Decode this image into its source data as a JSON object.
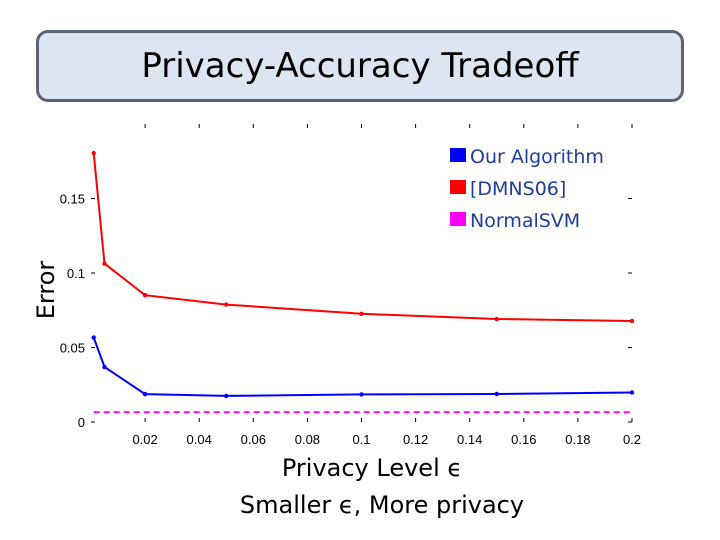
{
  "slide": {
    "title": "Privacy-Accuracy Tradeoff"
  },
  "chart_data": {
    "type": "line",
    "title": "",
    "xlabel": "Privacy Level ϵ",
    "xlabel_sub": "Smaller ϵ, More privacy",
    "ylabel": "Error",
    "xlim": [
      0,
      0.2
    ],
    "ylim": [
      0,
      0.2
    ],
    "x_ticks": [
      0.02,
      0.04,
      0.06,
      0.08,
      0.1,
      0.12,
      0.14,
      0.16,
      0.18,
      0.2
    ],
    "x_tick_labels": [
      "0.02",
      "0.04",
      "0.06",
      "0.08",
      "0.1",
      "0.12",
      "0.14",
      "0.16",
      "0.18",
      "0.2"
    ],
    "y_ticks": [
      0,
      0.05,
      0.1,
      0.15
    ],
    "y_tick_labels": [
      "0",
      "0.05",
      "0.1",
      "0.15"
    ],
    "grid": false,
    "legend_position": "top-right",
    "series": [
      {
        "name": "Our Algorithm",
        "color": "#0000ff",
        "style": "solid",
        "x": [
          0.001,
          0.005,
          0.02,
          0.05,
          0.1,
          0.15,
          0.2
        ],
        "y": [
          0.0567,
          0.0369,
          0.0187,
          0.0175,
          0.0185,
          0.0188,
          0.0198
        ]
      },
      {
        "name": "[DMNS06]",
        "color": "#ff0000",
        "style": "solid",
        "x": [
          0.001,
          0.005,
          0.02,
          0.05,
          0.1,
          0.15,
          0.2
        ],
        "y": [
          0.1805,
          0.1063,
          0.0851,
          0.0788,
          0.0726,
          0.0691,
          0.0678
        ]
      },
      {
        "name": "NormalSVM",
        "color": "#ff00ff",
        "style": "dashed",
        "x": [
          0.001,
          0.2
        ],
        "y": [
          0.0066,
          0.0066
        ]
      }
    ]
  }
}
